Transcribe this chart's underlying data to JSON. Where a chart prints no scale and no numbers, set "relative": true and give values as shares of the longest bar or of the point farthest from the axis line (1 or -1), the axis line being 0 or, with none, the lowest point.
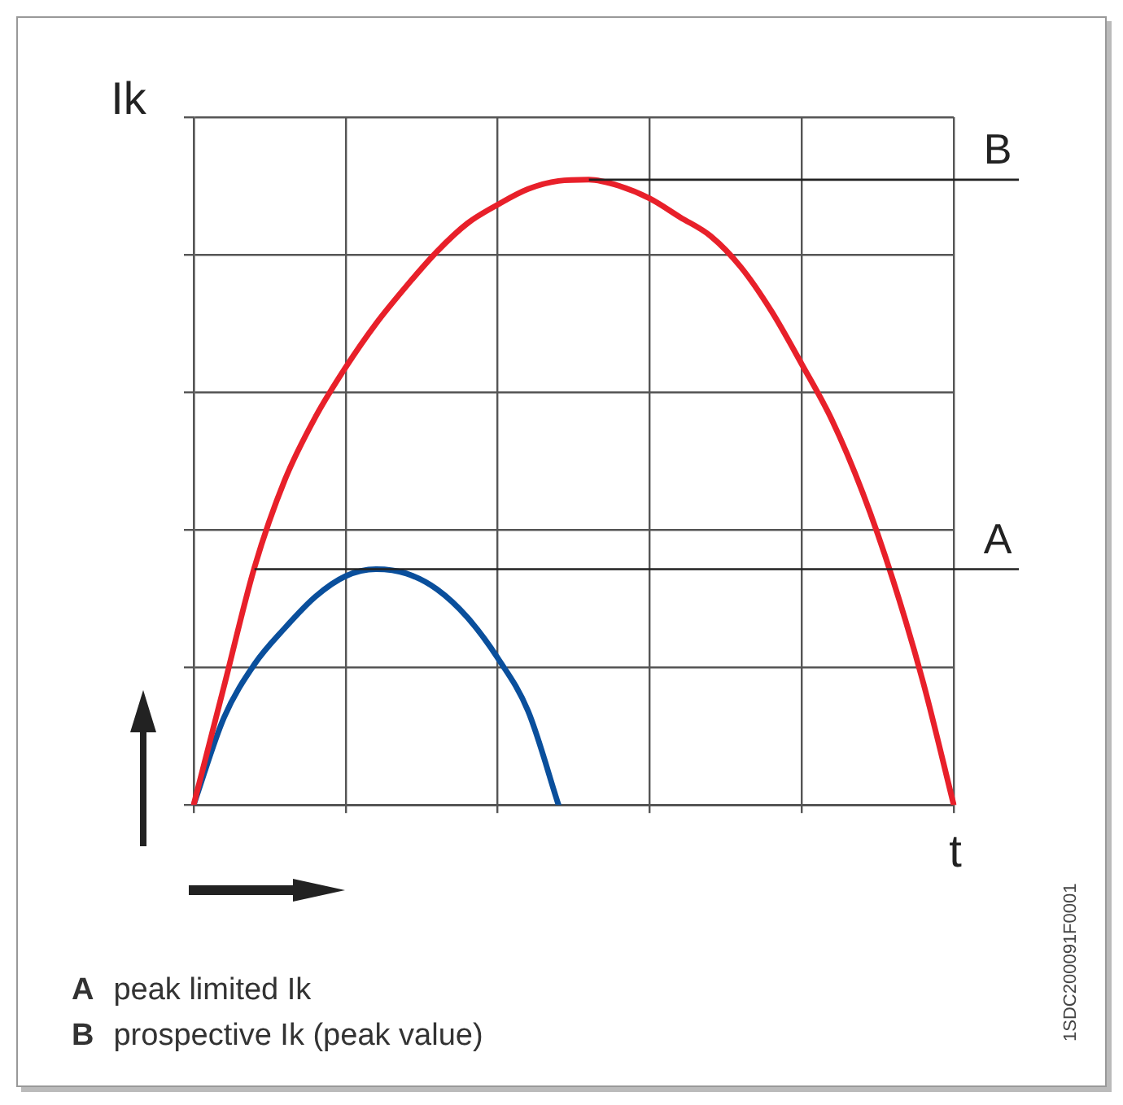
{
  "chart_data": {
    "type": "line",
    "relative": true,
    "xlabel": "t",
    "ylabel": "Ik",
    "categories": [
      null,
      null,
      null,
      null,
      null,
      null,
      null,
      null,
      null,
      null,
      null,
      null,
      null,
      null,
      null,
      null,
      null,
      null,
      null,
      null,
      null,
      null,
      null,
      null,
      null,
      null
    ],
    "grid": true,
    "marker": "none",
    "line_style": "solid",
    "series": [
      {
        "color": "#e8202a",
        "values": [
          0,
          0.19,
          0.38,
          0.52,
          0.62,
          0.7,
          0.77,
          0.83,
          0.885,
          0.93,
          0.96,
          0.985,
          0.998,
          1,
          0.99,
          0.97,
          0.94,
          0.91,
          0.86,
          0.79,
          0.705,
          0.615,
          0.5,
          0.36,
          0.195,
          0
        ]
      },
      {
        "color": "#0a4f9c",
        "values": [
          0,
          0.14,
          0.225,
          0.283,
          0.333,
          0.366,
          0.377,
          0.37,
          0.345,
          0.3,
          0.235,
          0.15,
          0,
          null,
          null,
          null,
          null,
          null,
          null,
          null,
          null,
          null,
          null,
          null,
          null,
          null
        ]
      }
    ],
    "ref_lines": [
      {
        "axis": "y",
        "value": 1,
        "label": "B"
      },
      {
        "axis": "y",
        "value": 0.377,
        "label": "A"
      }
    ],
    "annotations": [
      "A peak limited Ik",
      "B prospective Ik (peak value)",
      "1SDC200091F0001"
    ]
  }
}
